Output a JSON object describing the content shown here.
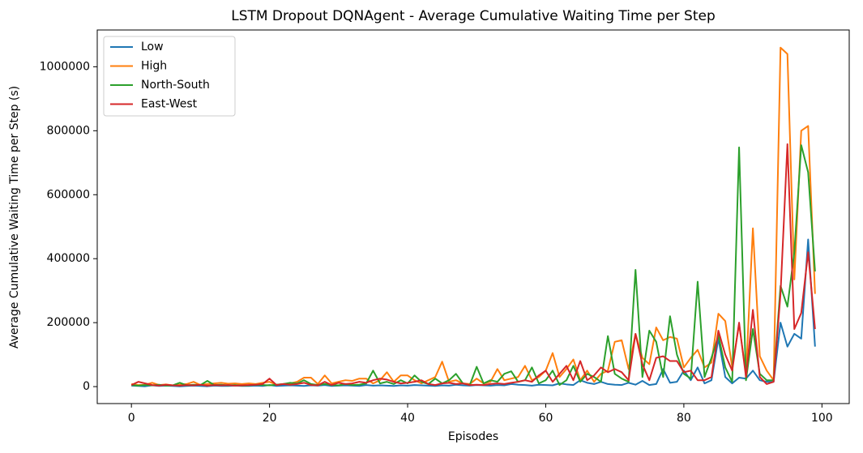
{
  "chart_data": {
    "type": "line",
    "title": "LSTM Dropout DQNAgent - Average Cumulative Waiting Time per Step",
    "x_label": "Episodes",
    "y_label": "Average Cumulative Waiting Time per Step (s)",
    "legend": "upper left",
    "xlim": [
      -4.95,
      103.95
    ],
    "ylim": [
      -53000,
      1115000
    ],
    "xticks": [
      0,
      20,
      40,
      60,
      80,
      100
    ],
    "yticks": [
      0,
      200000,
      400000,
      600000,
      800000,
      1000000
    ],
    "x": [
      0,
      1,
      2,
      3,
      4,
      5,
      6,
      7,
      8,
      9,
      10,
      11,
      12,
      13,
      14,
      15,
      16,
      17,
      18,
      19,
      20,
      21,
      22,
      23,
      24,
      25,
      26,
      27,
      28,
      29,
      30,
      31,
      32,
      33,
      34,
      35,
      36,
      37,
      38,
      39,
      40,
      41,
      42,
      43,
      44,
      45,
      46,
      47,
      48,
      49,
      50,
      51,
      52,
      53,
      54,
      55,
      56,
      57,
      58,
      59,
      60,
      61,
      62,
      63,
      64,
      65,
      66,
      67,
      68,
      69,
      70,
      71,
      72,
      73,
      74,
      75,
      76,
      77,
      78,
      79,
      80,
      81,
      82,
      83,
      84,
      85,
      86,
      87,
      88,
      89,
      90,
      91,
      92,
      93,
      94,
      95,
      96,
      97,
      98,
      99
    ],
    "series": [
      {
        "name": "Low",
        "color": "#1f77b4",
        "values": [
          3000,
          2000,
          1000,
          4000,
          2000,
          3000,
          2000,
          1000,
          2000,
          3000,
          2000,
          1000,
          3000,
          2000,
          2000,
          3000,
          2000,
          2000,
          3000,
          2000,
          5000,
          2000,
          3000,
          4000,
          3000,
          2000,
          4000,
          3000,
          5000,
          2000,
          3000,
          4000,
          3000,
          2000,
          5000,
          3000,
          4000,
          3000,
          2000,
          4000,
          3000,
          5000,
          4000,
          3000,
          2000,
          4000,
          3000,
          6000,
          4000,
          3000,
          5000,
          4000,
          3000,
          5000,
          4000,
          8000,
          6000,
          5000,
          3000,
          6000,
          5000,
          4000,
          10000,
          7000,
          5000,
          20000,
          12000,
          8000,
          15000,
          8000,
          6000,
          5000,
          12000,
          6000,
          18000,
          5000,
          8000,
          55000,
          12000,
          15000,
          50000,
          20000,
          60000,
          10000,
          20000,
          150000,
          30000,
          10000,
          28000,
          25000,
          50000,
          20000,
          15000,
          15000,
          200000,
          125000,
          165000,
          150000,
          460000,
          125000
        ]
      },
      {
        "name": "High",
        "color": "#ff7f0e",
        "values": [
          8000,
          5000,
          6000,
          12000,
          5000,
          7000,
          4000,
          6000,
          8000,
          15000,
          5000,
          8000,
          10000,
          12000,
          9000,
          10000,
          8000,
          10000,
          8000,
          12000,
          15000,
          6000,
          8000,
          10000,
          15000,
          28000,
          28000,
          8000,
          35000,
          10000,
          15000,
          20000,
          18000,
          25000,
          25000,
          10000,
          20000,
          45000,
          15000,
          35000,
          35000,
          20000,
          10000,
          20000,
          30000,
          78000,
          15000,
          20000,
          10000,
          8000,
          25000,
          10000,
          15000,
          55000,
          20000,
          25000,
          30000,
          65000,
          20000,
          30000,
          50000,
          105000,
          30000,
          55000,
          85000,
          20000,
          50000,
          15000,
          40000,
          50000,
          140000,
          145000,
          55000,
          165000,
          90000,
          70000,
          185000,
          145000,
          155000,
          150000,
          60000,
          90000,
          115000,
          60000,
          75000,
          228000,
          205000,
          60000,
          195000,
          40000,
          495000,
          95000,
          50000,
          20000,
          1060000,
          1040000,
          335000,
          800000,
          815000,
          290000
        ]
      },
      {
        "name": "North-South",
        "color": "#2ca02c",
        "values": [
          5000,
          3000,
          5000,
          4000,
          6000,
          3000,
          4000,
          12000,
          4000,
          6000,
          5000,
          18000,
          5000,
          6000,
          4000,
          5000,
          3000,
          4000,
          6000,
          5000,
          4000,
          6000,
          8000,
          12000,
          10000,
          20000,
          8000,
          5000,
          8000,
          5000,
          4000,
          8000,
          5000,
          6000,
          10000,
          50000,
          10000,
          15000,
          8000,
          20000,
          10000,
          35000,
          15000,
          8000,
          25000,
          10000,
          20000,
          40000,
          10000,
          5000,
          62000,
          10000,
          20000,
          15000,
          40000,
          48000,
          15000,
          20000,
          60000,
          10000,
          20000,
          50000,
          5000,
          20000,
          65000,
          15000,
          40000,
          30000,
          15000,
          158000,
          40000,
          25000,
          15000,
          365000,
          30000,
          175000,
          140000,
          30000,
          220000,
          100000,
          40000,
          25000,
          328000,
          30000,
          90000,
          160000,
          60000,
          15000,
          748000,
          20000,
          180000,
          40000,
          20000,
          20000,
          315000,
          250000,
          420000,
          755000,
          670000,
          360000
        ]
      },
      {
        "name": "East-West",
        "color": "#d62728",
        "values": [
          5000,
          15000,
          10000,
          5000,
          3000,
          6000,
          4000,
          3000,
          5000,
          4000,
          6000,
          3000,
          5000,
          4000,
          5000,
          3000,
          4000,
          5000,
          6000,
          8000,
          25000,
          5000,
          8000,
          6000,
          8000,
          12000,
          5000,
          4000,
          15000,
          5000,
          12000,
          8000,
          10000,
          15000,
          12000,
          20000,
          25000,
          22000,
          15000,
          10000,
          12000,
          15000,
          20000,
          8000,
          5000,
          10000,
          12000,
          8000,
          10000,
          5000,
          6000,
          5000,
          8000,
          10000,
          8000,
          12000,
          15000,
          20000,
          15000,
          35000,
          50000,
          15000,
          40000,
          65000,
          20000,
          80000,
          20000,
          35000,
          60000,
          45000,
          55000,
          45000,
          20000,
          165000,
          70000,
          20000,
          90000,
          95000,
          80000,
          80000,
          45000,
          50000,
          20000,
          20000,
          30000,
          175000,
          100000,
          50000,
          200000,
          30000,
          240000,
          30000,
          8000,
          15000,
          290000,
          758000,
          180000,
          230000,
          420000,
          180000
        ]
      }
    ]
  }
}
